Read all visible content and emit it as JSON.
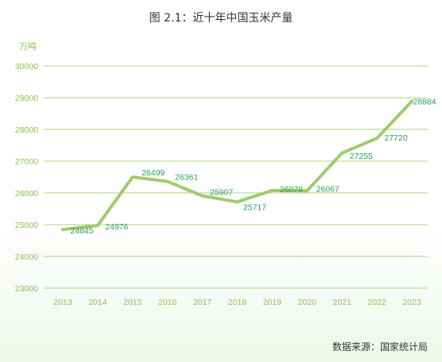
{
  "chart_data": {
    "type": "line",
    "title": "图 2.1：近十年中国玉米产量",
    "ylabel": "万吨",
    "xlabel": "",
    "categories": [
      "2013",
      "2014",
      "2015",
      "2016",
      "2017",
      "2018",
      "2019",
      "2020",
      "2021",
      "2022",
      "2023"
    ],
    "series": [
      {
        "values": [
          24845,
          24976,
          26499,
          26361,
          25907,
          25717,
          26078,
          26067,
          27255,
          27720,
          28884
        ]
      }
    ],
    "data_labels": [
      "24845",
      "24976",
      "26499",
      "26361",
      "25907",
      "25717",
      "26078",
      "26067",
      "27255",
      "27720",
      "28884"
    ],
    "yticks": [
      "23000",
      "24000",
      "25000",
      "26000",
      "27000",
      "28000",
      "29000",
      "30000"
    ],
    "ylim": [
      23000,
      30000
    ],
    "grid": "horizontal",
    "legend": "none",
    "line_color": "#9fcc6b",
    "grid_color": "#a8d47e",
    "tick_color": "#8cc152",
    "label_color": "#2e9e54"
  },
  "source": "数据来源：国家统计局"
}
